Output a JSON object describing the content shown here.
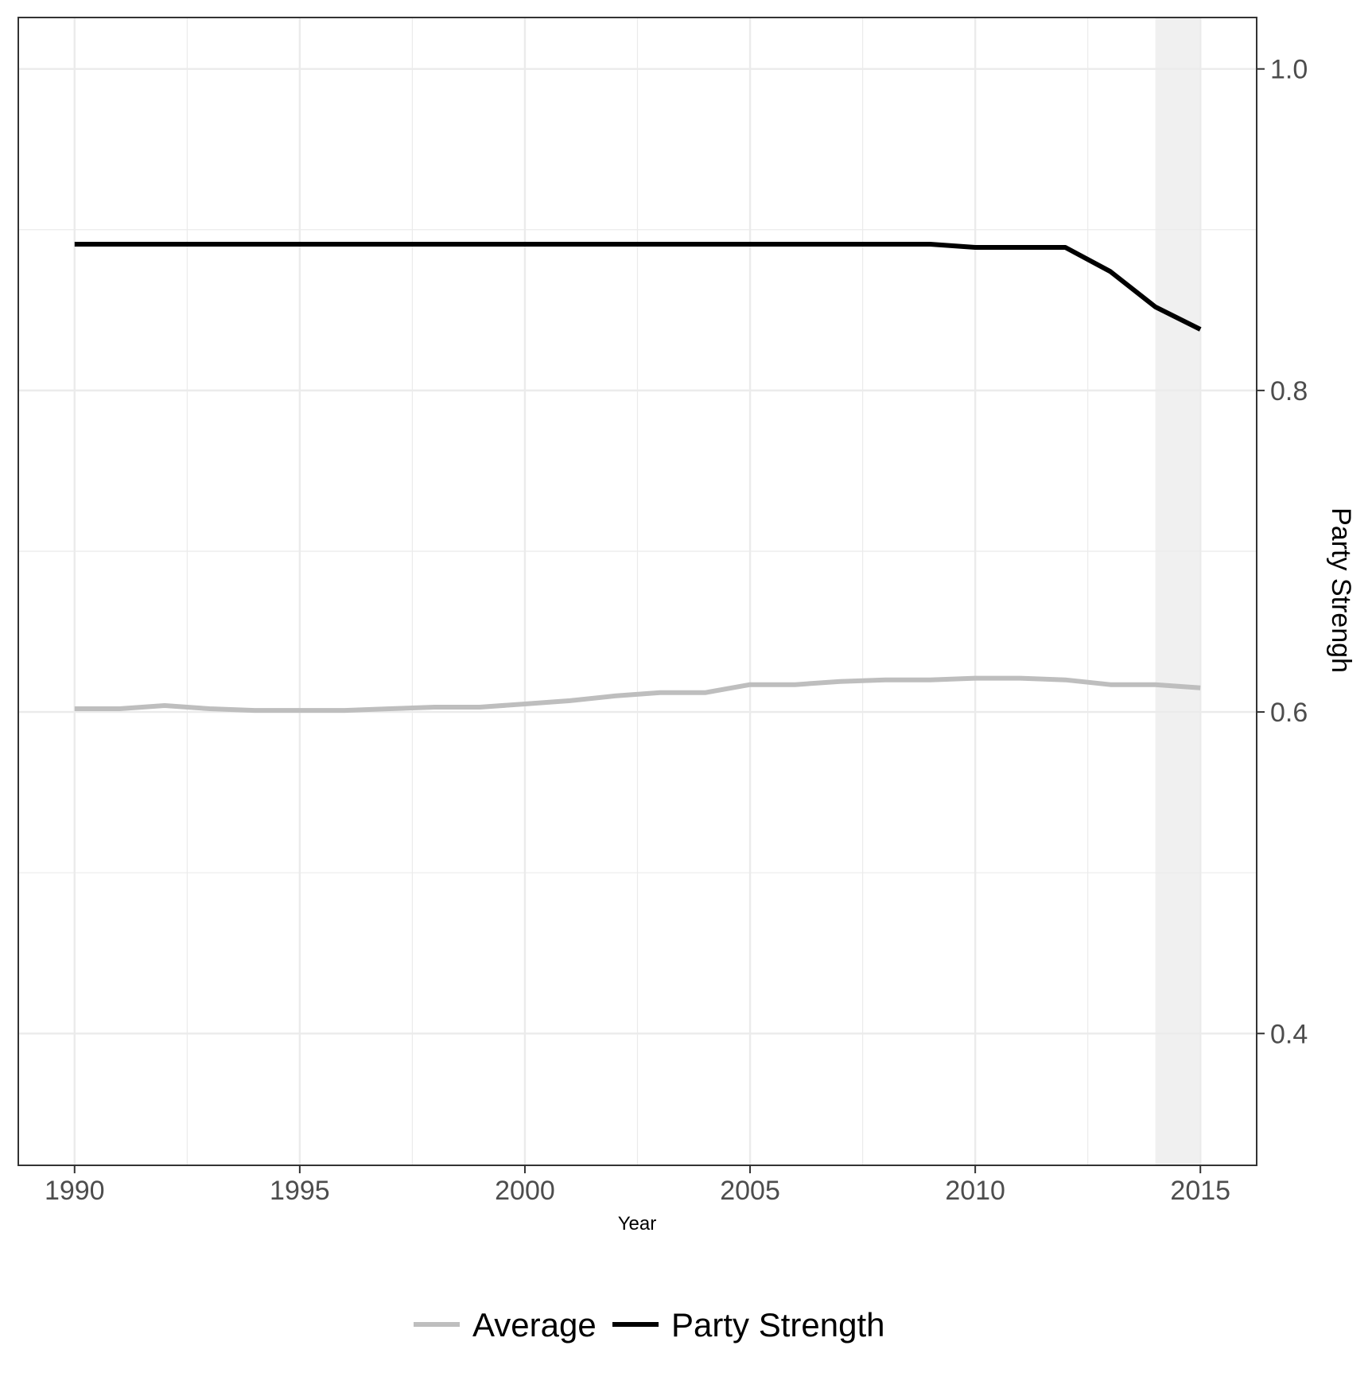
{
  "chart_data": {
    "type": "line",
    "xlabel": "Year",
    "ylabel": "Party Strengh",
    "xlim": [
      1988.75,
      2016.25
    ],
    "ylim": [
      0.318,
      1.032
    ],
    "x_ticks": [
      1990,
      1995,
      2000,
      2005,
      2010,
      2015
    ],
    "x_tick_labels": [
      "1990",
      "1995",
      "2000",
      "2005",
      "2010",
      "2015"
    ],
    "y_ticks": [
      0.4,
      0.6,
      0.8,
      1.0
    ],
    "y_tick_labels": [
      "0.4",
      "0.6",
      "0.8",
      "1.0"
    ],
    "y_axis_position": "right",
    "grid": true,
    "legend_position": "bottom",
    "shaded_region": {
      "x_start": 2014,
      "x_end": 2015,
      "color": "#f0f0f0"
    },
    "x": [
      1990,
      1991,
      1992,
      1993,
      1994,
      1995,
      1996,
      1997,
      1998,
      1999,
      2000,
      2001,
      2002,
      2003,
      2004,
      2005,
      2006,
      2007,
      2008,
      2009,
      2010,
      2011,
      2012,
      2013,
      2014,
      2015
    ],
    "series": [
      {
        "name": "Average",
        "color": "#bebebe",
        "values": [
          0.602,
          0.602,
          0.604,
          0.602,
          0.601,
          0.601,
          0.601,
          0.602,
          0.603,
          0.603,
          0.605,
          0.607,
          0.61,
          0.612,
          0.612,
          0.617,
          0.617,
          0.619,
          0.62,
          0.62,
          0.621,
          0.621,
          0.62,
          0.617,
          0.617,
          0.615
        ]
      },
      {
        "name": "Party Strength",
        "color": "#000000",
        "values": [
          0.891,
          0.891,
          0.891,
          0.891,
          0.891,
          0.891,
          0.891,
          0.891,
          0.891,
          0.891,
          0.891,
          0.891,
          0.891,
          0.891,
          0.891,
          0.891,
          0.891,
          0.891,
          0.891,
          0.891,
          0.889,
          0.889,
          0.889,
          0.874,
          0.852,
          0.838
        ]
      }
    ]
  }
}
